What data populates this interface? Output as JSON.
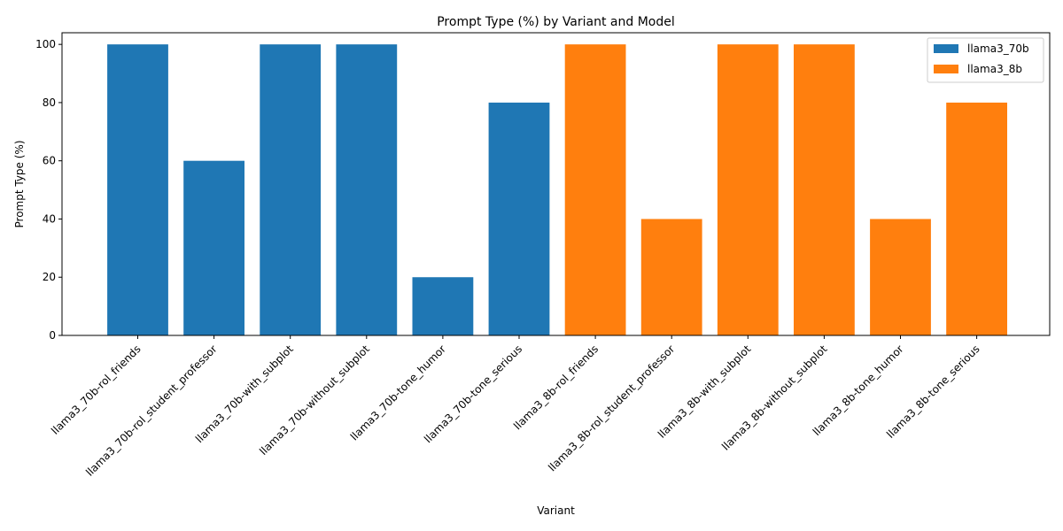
{
  "chart_data": {
    "type": "bar",
    "title": "Prompt Type (%) by Variant and Model",
    "xlabel": "Variant",
    "ylabel": "Prompt Type (%)",
    "ylim": [
      0,
      104
    ],
    "yticks": [
      0,
      20,
      40,
      60,
      80,
      100
    ],
    "grid": false,
    "legend_position": "top-right",
    "categories": [
      "llama3_70b-rol_friends",
      "llama3_70b-rol_student_professor",
      "llama3_70b-with_subplot",
      "llama3_70b-without_subplot",
      "llama3_70b-tone_humor",
      "llama3_70b-tone_serious",
      "llama3_8b-rol_friends",
      "llama3_8b-rol_student_professor",
      "llama3_8b-with_subplot",
      "llama3_8b-without_subplot",
      "llama3_8b-tone_humor",
      "llama3_8b-tone_serious"
    ],
    "series": [
      {
        "name": "llama3_70b",
        "color": "#1f77b4",
        "values": [
          100,
          60,
          100,
          100,
          20,
          80,
          null,
          null,
          null,
          null,
          null,
          null
        ]
      },
      {
        "name": "llama3_8b",
        "color": "#ff7f0e",
        "values": [
          null,
          null,
          null,
          null,
          null,
          null,
          100,
          40,
          100,
          100,
          40,
          80
        ]
      }
    ]
  }
}
